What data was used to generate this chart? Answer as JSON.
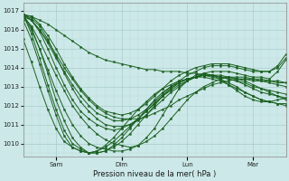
{
  "xlabel": "Pression niveau de la mer( hPa )",
  "bg_color": "#cce8e8",
  "grid_color_major": "#aacccc",
  "grid_color_minor": "#bbdddd",
  "line_color": "#1a6020",
  "ylim": [
    1009.3,
    1017.4
  ],
  "xlim": [
    0,
    192
  ],
  "yticks": [
    1010,
    1011,
    1012,
    1013,
    1014,
    1015,
    1016,
    1017
  ],
  "xticks": [
    24,
    72,
    120,
    168
  ],
  "xlabels": [
    "Sam",
    "Dim",
    "Lun",
    "Mar"
  ],
  "series": [
    {
      "x": [
        0,
        6,
        12,
        18,
        24,
        30,
        36,
        42,
        48,
        54,
        60,
        66,
        72,
        78,
        84,
        90,
        96,
        102,
        108,
        114,
        120,
        126,
        132,
        138,
        144,
        150,
        156,
        162,
        168,
        174,
        180,
        186,
        192
      ],
      "y": [
        1016.8,
        1016.7,
        1016.5,
        1016.3,
        1016.0,
        1015.7,
        1015.4,
        1015.1,
        1014.8,
        1014.6,
        1014.4,
        1014.3,
        1014.2,
        1014.1,
        1014.0,
        1013.9,
        1013.9,
        1013.8,
        1013.8,
        1013.8,
        1013.7,
        1013.7,
        1013.6,
        1013.6,
        1013.5,
        1013.5,
        1013.4,
        1013.4,
        1013.3,
        1013.3,
        1013.3,
        1013.2,
        1013.2
      ]
    },
    {
      "x": [
        0,
        6,
        12,
        18,
        24,
        30,
        36,
        42,
        48,
        54,
        60,
        66,
        72,
        78,
        84,
        90,
        96,
        102,
        108,
        114,
        120,
        126,
        132,
        138,
        144,
        150,
        156,
        162,
        168,
        174,
        180,
        186,
        192
      ],
      "y": [
        1016.8,
        1016.5,
        1016.0,
        1015.4,
        1014.7,
        1014.0,
        1013.4,
        1012.8,
        1012.3,
        1011.9,
        1011.6,
        1011.4,
        1011.3,
        1011.3,
        1011.3,
        1011.4,
        1011.6,
        1011.8,
        1012.0,
        1012.3,
        1012.5,
        1012.7,
        1012.9,
        1013.1,
        1013.2,
        1013.3,
        1013.4,
        1013.4,
        1013.4,
        1013.4,
        1013.3,
        1013.3,
        1013.2
      ]
    },
    {
      "x": [
        0,
        6,
        12,
        18,
        24,
        30,
        36,
        42,
        48,
        54,
        60,
        66,
        72,
        78,
        84,
        90,
        96,
        102,
        108,
        114,
        120,
        126,
        132,
        138,
        144,
        150,
        156,
        162,
        168,
        174,
        180,
        186,
        192
      ],
      "y": [
        1016.7,
        1016.2,
        1015.4,
        1014.5,
        1013.6,
        1012.8,
        1012.0,
        1011.4,
        1010.9,
        1010.5,
        1010.2,
        1010.0,
        1009.9,
        1009.8,
        1009.9,
        1010.1,
        1010.4,
        1010.8,
        1011.3,
        1011.8,
        1012.3,
        1012.7,
        1013.0,
        1013.2,
        1013.4,
        1013.5,
        1013.5,
        1013.5,
        1013.4,
        1013.3,
        1013.2,
        1013.1,
        1013.0
      ]
    },
    {
      "x": [
        0,
        6,
        12,
        18,
        24,
        30,
        36,
        42,
        48,
        54,
        60,
        66,
        72,
        78,
        84,
        90,
        96,
        102,
        108,
        114,
        120,
        126,
        132,
        138,
        144,
        150,
        156,
        162,
        168,
        174,
        180,
        186,
        192
      ],
      "y": [
        1016.7,
        1016.0,
        1015.0,
        1013.9,
        1012.8,
        1011.8,
        1011.0,
        1010.4,
        1010.0,
        1009.8,
        1009.7,
        1009.6,
        1009.6,
        1009.7,
        1009.9,
        1010.3,
        1010.8,
        1011.5,
        1012.2,
        1012.9,
        1013.3,
        1013.6,
        1013.7,
        1013.6,
        1013.4,
        1013.1,
        1012.8,
        1012.5,
        1012.3,
        1012.2,
        1012.2,
        1012.3,
        1012.4
      ]
    },
    {
      "x": [
        0,
        6,
        12,
        18,
        24,
        30,
        36,
        42,
        48,
        54,
        60,
        66,
        72,
        78,
        84,
        90,
        96,
        102,
        108,
        114,
        120,
        126,
        132,
        138,
        144,
        150,
        156,
        162,
        168,
        174,
        180,
        186,
        192
      ],
      "y": [
        1016.8,
        1015.8,
        1014.5,
        1013.1,
        1011.8,
        1010.7,
        1010.0,
        1009.7,
        1009.5,
        1009.5,
        1009.6,
        1009.8,
        1010.1,
        1010.5,
        1011.0,
        1011.5,
        1012.0,
        1012.5,
        1012.9,
        1013.2,
        1013.4,
        1013.5,
        1013.6,
        1013.5,
        1013.4,
        1013.2,
        1013.0,
        1012.7,
        1012.5,
        1012.3,
        1012.2,
        1012.1,
        1012.1
      ]
    },
    {
      "x": [
        0,
        6,
        12,
        18,
        24,
        30,
        36,
        42,
        48,
        54,
        60,
        66,
        72,
        78,
        84,
        90,
        96,
        102,
        108,
        114,
        120,
        126,
        132,
        138,
        144,
        150,
        156,
        162,
        168,
        174,
        180,
        186,
        192
      ],
      "y": [
        1016.5,
        1015.5,
        1014.2,
        1012.8,
        1011.5,
        1010.4,
        1009.8,
        1009.6,
        1009.5,
        1009.6,
        1009.9,
        1010.3,
        1010.8,
        1011.3,
        1011.8,
        1012.2,
        1012.6,
        1012.9,
        1013.1,
        1013.3,
        1013.4,
        1013.5,
        1013.5,
        1013.4,
        1013.3,
        1013.1,
        1012.9,
        1012.7,
        1012.5,
        1012.3,
        1012.2,
        1012.1,
        1012.0
      ]
    },
    {
      "x": [
        0,
        6,
        12,
        18,
        24,
        30,
        36,
        42,
        48,
        54,
        60,
        66,
        72,
        78,
        84,
        90,
        96,
        102,
        108,
        114,
        120,
        126,
        132,
        138,
        144,
        150,
        156,
        162,
        168,
        174,
        180,
        186,
        192
      ],
      "y": [
        1015.5,
        1014.3,
        1013.0,
        1011.8,
        1010.8,
        1010.1,
        1009.8,
        1009.6,
        1009.5,
        1009.6,
        1009.8,
        1010.1,
        1010.5,
        1010.9,
        1011.3,
        1011.7,
        1012.1,
        1012.5,
        1012.8,
        1013.1,
        1013.3,
        1013.5,
        1013.6,
        1013.6,
        1013.6,
        1013.5,
        1013.4,
        1013.3,
        1013.1,
        1012.9,
        1012.7,
        1012.5,
        1012.3
      ]
    },
    {
      "x": [
        0,
        6,
        12,
        18,
        24,
        30,
        36,
        42,
        48,
        54,
        60,
        66,
        72,
        78,
        84,
        90,
        96,
        102,
        108,
        114,
        120,
        126,
        132,
        138,
        144,
        150,
        156,
        162,
        168,
        174,
        180,
        186,
        192
      ],
      "y": [
        1016.8,
        1016.1,
        1015.0,
        1013.7,
        1012.3,
        1011.2,
        1010.3,
        1009.8,
        1009.5,
        1009.5,
        1009.6,
        1009.9,
        1010.3,
        1010.8,
        1011.3,
        1011.8,
        1012.3,
        1012.7,
        1013.0,
        1013.2,
        1013.4,
        1013.5,
        1013.6,
        1013.6,
        1013.5,
        1013.4,
        1013.3,
        1013.1,
        1012.9,
        1012.7,
        1012.6,
        1012.5,
        1012.4
      ]
    },
    {
      "x": [
        0,
        6,
        12,
        18,
        24,
        30,
        36,
        42,
        48,
        54,
        60,
        66,
        72,
        78,
        84,
        90,
        96,
        102,
        108,
        114,
        120,
        126,
        132,
        138,
        144,
        150,
        156,
        162,
        168,
        174,
        180,
        186,
        192
      ],
      "y": [
        1016.8,
        1016.5,
        1015.9,
        1015.0,
        1014.0,
        1013.1,
        1012.3,
        1011.7,
        1011.3,
        1011.0,
        1010.8,
        1010.7,
        1010.8,
        1011.0,
        1011.3,
        1011.7,
        1012.1,
        1012.5,
        1012.9,
        1013.2,
        1013.4,
        1013.5,
        1013.6,
        1013.6,
        1013.5,
        1013.4,
        1013.3,
        1013.2,
        1013.0,
        1012.9,
        1012.8,
        1012.7,
        1012.6
      ]
    },
    {
      "x": [
        0,
        6,
        12,
        18,
        24,
        30,
        36,
        42,
        48,
        54,
        60,
        66,
        72,
        78,
        84,
        90,
        96,
        102,
        108,
        114,
        120,
        126,
        132,
        138,
        144,
        150,
        156,
        162,
        168,
        174,
        180,
        186,
        192
      ],
      "y": [
        1016.8,
        1016.6,
        1016.2,
        1015.5,
        1014.6,
        1013.7,
        1012.9,
        1012.2,
        1011.7,
        1011.3,
        1011.0,
        1010.9,
        1010.9,
        1011.0,
        1011.2,
        1011.5,
        1011.9,
        1012.3,
        1012.7,
        1013.0,
        1013.3,
        1013.5,
        1013.7,
        1013.8,
        1013.8,
        1013.8,
        1013.7,
        1013.6,
        1013.5,
        1013.5,
        1013.4,
        1013.8,
        1014.4
      ]
    },
    {
      "x": [
        0,
        6,
        12,
        18,
        24,
        30,
        36,
        42,
        48,
        54,
        60,
        66,
        72,
        78,
        84,
        90,
        96,
        102,
        108,
        114,
        120,
        126,
        132,
        138,
        144,
        150,
        156,
        162,
        168,
        174,
        180,
        186,
        192
      ],
      "y": [
        1016.8,
        1016.7,
        1016.3,
        1015.7,
        1015.0,
        1014.2,
        1013.5,
        1012.9,
        1012.4,
        1012.0,
        1011.7,
        1011.6,
        1011.5,
        1011.6,
        1011.8,
        1012.1,
        1012.5,
        1012.9,
        1013.3,
        1013.6,
        1013.8,
        1014.0,
        1014.1,
        1014.2,
        1014.2,
        1014.2,
        1014.1,
        1014.0,
        1013.9,
        1013.8,
        1013.8,
        1014.0,
        1014.5
      ]
    },
    {
      "x": [
        0,
        6,
        12,
        18,
        24,
        30,
        36,
        42,
        48,
        54,
        60,
        66,
        72,
        78,
        84,
        90,
        96,
        102,
        108,
        114,
        120,
        126,
        132,
        138,
        144,
        150,
        156,
        162,
        168,
        174,
        180,
        186,
        192
      ],
      "y": [
        1016.7,
        1016.5,
        1016.0,
        1015.3,
        1014.5,
        1013.8,
        1013.1,
        1012.5,
        1012.0,
        1011.6,
        1011.4,
        1011.2,
        1011.2,
        1011.3,
        1011.5,
        1011.8,
        1012.2,
        1012.6,
        1013.0,
        1013.3,
        1013.6,
        1013.8,
        1014.0,
        1014.1,
        1014.1,
        1014.1,
        1014.0,
        1013.9,
        1013.8,
        1013.8,
        1013.8,
        1014.1,
        1014.7
      ]
    }
  ]
}
